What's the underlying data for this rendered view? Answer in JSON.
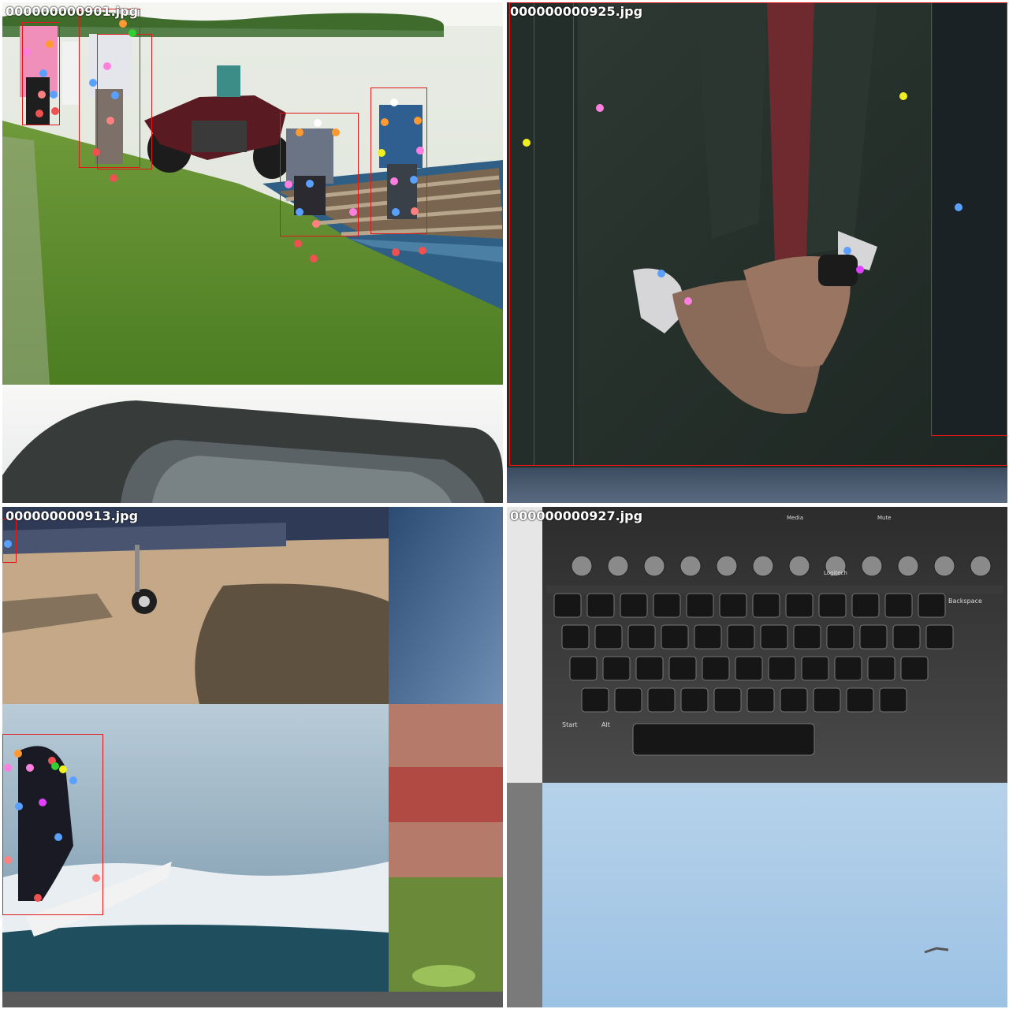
{
  "panels": {
    "tl": {
      "filename": "000000000901.jpg"
    },
    "tr": {
      "filename": "000000000925.jpg"
    },
    "bl": {
      "filename": "000000000913.jpg"
    },
    "br": {
      "filename": "000000000927.jpg"
    }
  },
  "colors": {
    "bbox": "#e01818",
    "kp_pink": "#ff7fe0",
    "kp_blue": "#5aa0ff",
    "kp_orange": "#ff9930",
    "kp_red": "#f05050",
    "kp_salmon": "#ff8080",
    "kp_yellow": "#f0f020",
    "kp_green": "#30d030",
    "kp_magenta": "#e040ff"
  },
  "keyboard_keys": {
    "backspace": "Backspace",
    "start": "Start",
    "alt": "Alt",
    "media": "Media",
    "mute": "Mute",
    "brand": "Logitech"
  }
}
